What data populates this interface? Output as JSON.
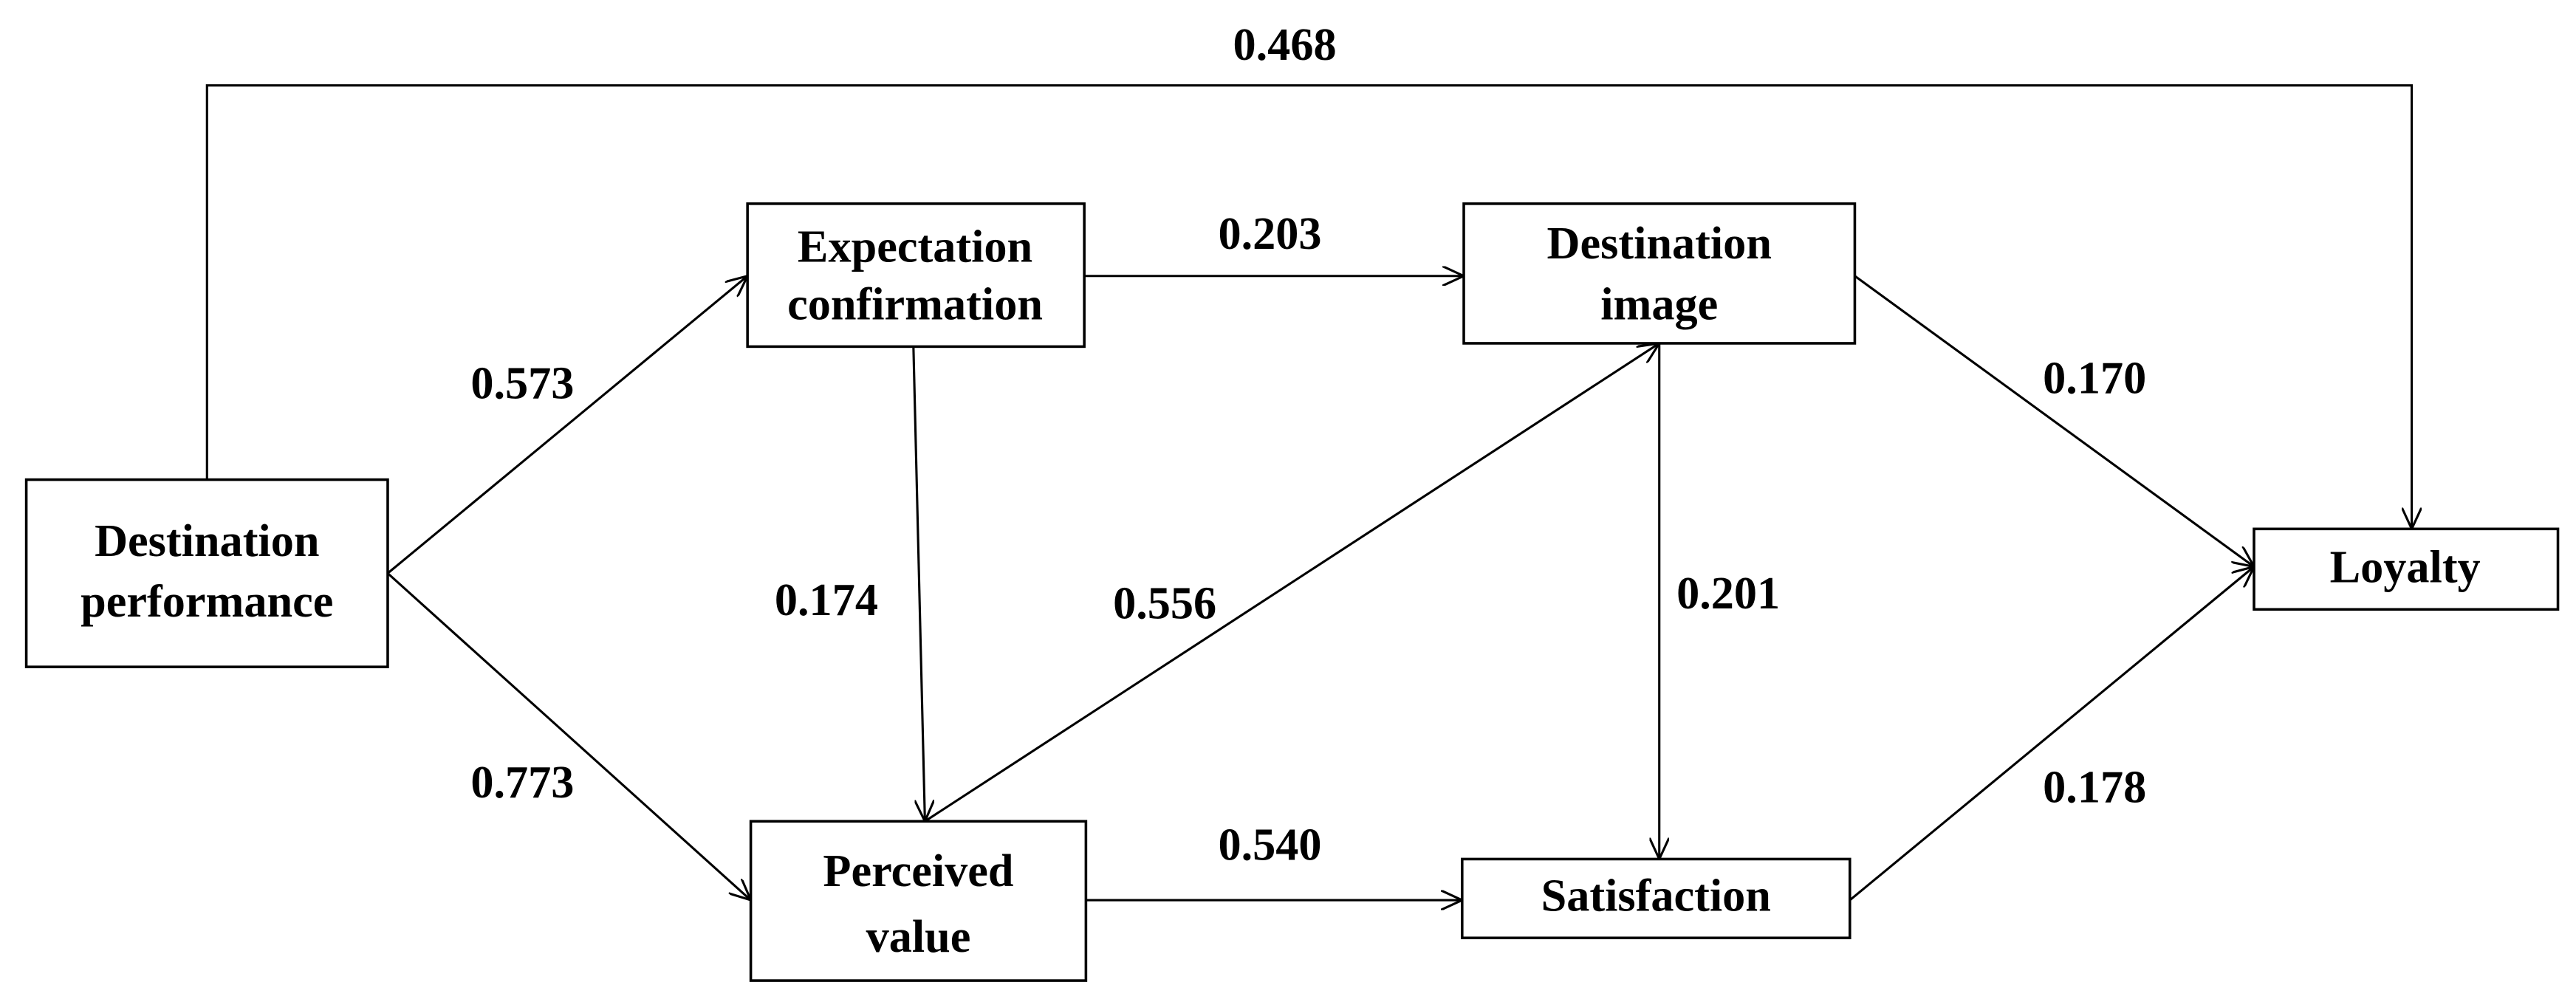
{
  "nodes": [
    {
      "label": [
        "Destination",
        "performance"
      ]
    },
    {
      "label": [
        "Expectation",
        "confirmation"
      ]
    },
    {
      "label": [
        "Destination",
        "image"
      ]
    },
    {
      "label": [
        "Loyalty"
      ]
    },
    {
      "label": [
        "Perceived",
        "value"
      ]
    },
    {
      "label": [
        "Satisfaction"
      ]
    }
  ],
  "edges": [
    {
      "label": "0.468"
    },
    {
      "label": "0.573"
    },
    {
      "label": "0.773"
    },
    {
      "label": "0.203"
    },
    {
      "label": "0.174"
    },
    {
      "label": "0.556"
    },
    {
      "label": "0.201"
    },
    {
      "label": "0.170"
    },
    {
      "label": "0.540"
    },
    {
      "label": "0.178"
    }
  ]
}
